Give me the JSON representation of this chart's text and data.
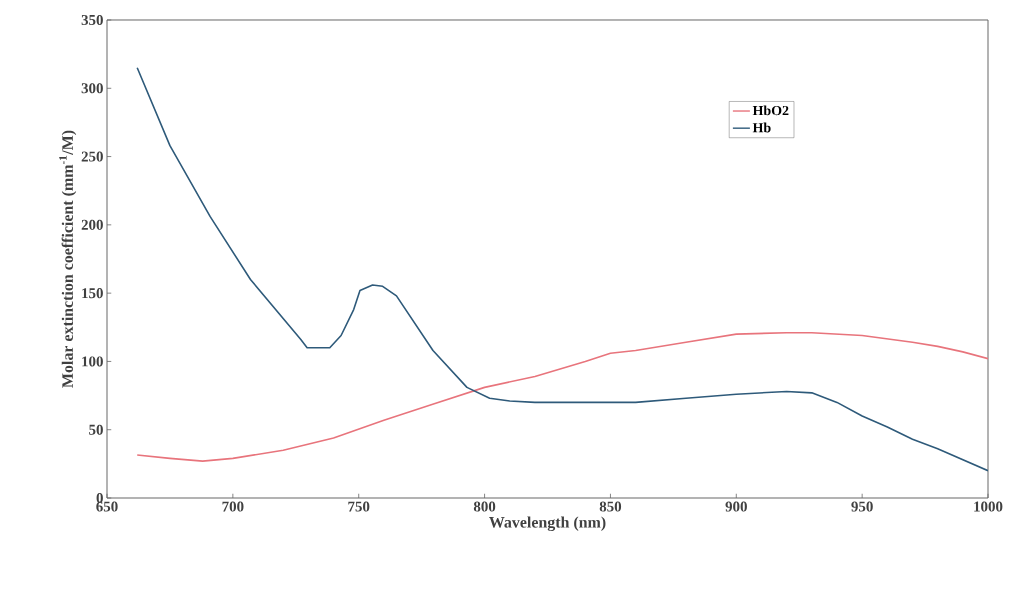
{
  "chart_data": {
    "type": "line",
    "xlabel": "Wavelength (nm)",
    "ylabel": "Molar extinction coefficient (mm$^{-1}$/M)",
    "xlim": [
      650,
      1000
    ],
    "xticks": [
      650,
      700,
      750,
      800,
      850,
      900,
      950,
      1000
    ],
    "ylim": [
      0,
      350
    ],
    "yticks": [
      0,
      50,
      100,
      150,
      200,
      250,
      300,
      350
    ],
    "grid": false,
    "legend": "top right",
    "marker": "none",
    "line_style": "solid",
    "series": [
      {
        "name": "HbO2",
        "color": "#e8747c",
        "x": [
          662,
          675,
          688,
          700,
          720,
          740,
          760,
          780,
          800,
          820,
          840,
          850,
          860,
          880,
          900,
          920,
          930,
          950,
          970,
          980,
          990,
          1000
        ],
        "values": [
          31.5,
          29,
          27,
          29,
          35,
          44,
          57,
          69,
          81,
          89,
          100,
          106,
          108,
          114,
          120,
          121,
          121,
          119,
          114,
          111,
          107,
          102
        ]
      },
      {
        "name": "Hb",
        "color": "#2e5a7a",
        "x": [
          662,
          675,
          691,
          707,
          727,
          729.5,
          738.5,
          743,
          748,
          750.5,
          755.5,
          759.5,
          765,
          779.5,
          793,
          802,
          810,
          820,
          840,
          860,
          880,
          900,
          920,
          930,
          940,
          950,
          960,
          970,
          980,
          990,
          1000
        ],
        "values": [
          315,
          258,
          206,
          160,
          116,
          110,
          110,
          119,
          138,
          152,
          156,
          155,
          148,
          108,
          81,
          73,
          71,
          70,
          70,
          70,
          73,
          76,
          78,
          77,
          70,
          60,
          52,
          43,
          36,
          28,
          20
        ]
      }
    ]
  }
}
